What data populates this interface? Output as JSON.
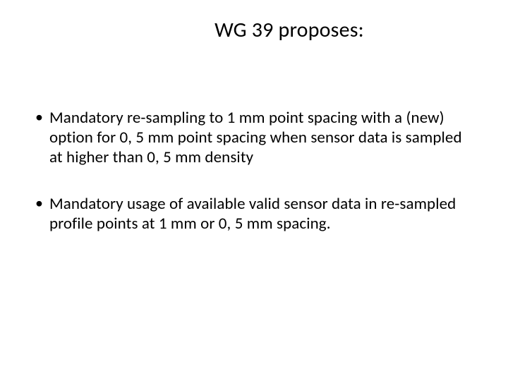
{
  "slide": {
    "title": "WG 39 proposes:",
    "bullets": [
      "Mandatory re-sampling to 1 mm point spacing with a (new) option for 0, 5 mm point spacing when sensor data is sampled at higher than 0, 5 mm density",
      "Mandatory usage of available valid sensor data in re-sampled profile points at 1 mm or 0, 5 mm spacing."
    ],
    "colors": {
      "background": "#ffffff",
      "text": "#000000"
    },
    "typography": {
      "title_fontsize": 30,
      "bullet_fontsize": 23,
      "font_family": "Calibri"
    }
  }
}
